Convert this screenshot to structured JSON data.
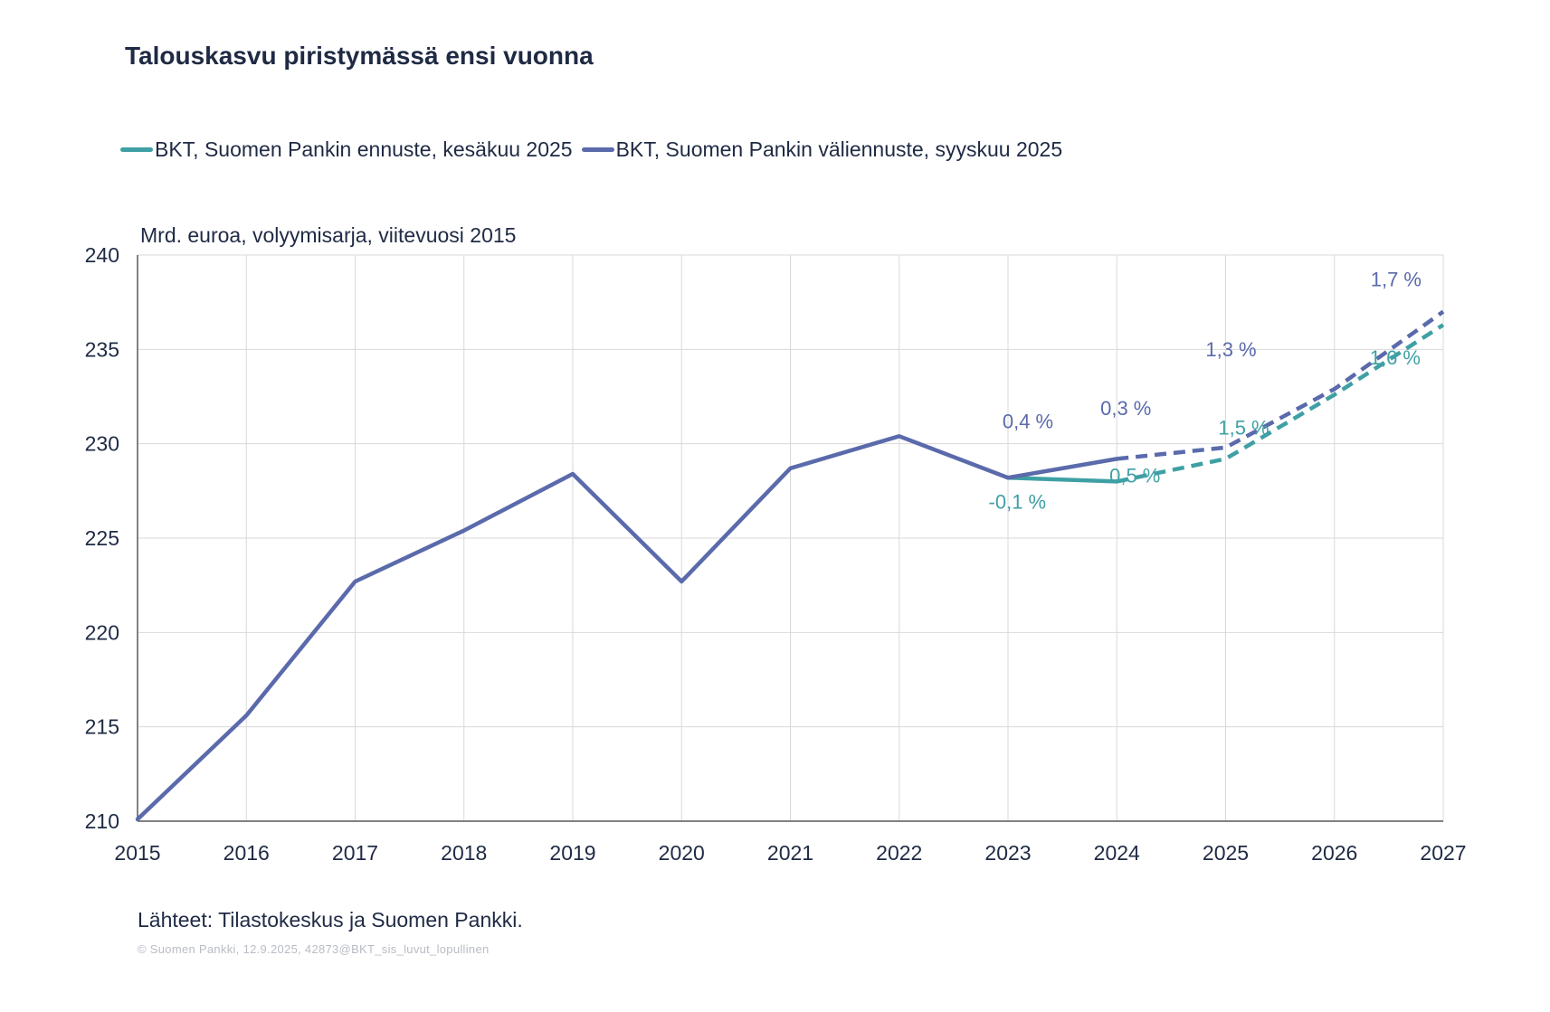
{
  "title": "Talouskasvu piristymässä ensi vuonna",
  "source": "Lähteet: Tilastokeskus ja Suomen Pankki.",
  "copyright": "© Suomen  Pankki, 12.9.2025, 42873@BKT_sis_luvut_lopullinen",
  "colors": {
    "june": "#3fa0a4",
    "sept": "#5a6aab",
    "grid": "#d9d9d9",
    "axis": "#595959",
    "text": "#1f2a44"
  },
  "chart_data": {
    "type": "line",
    "title": "Talouskasvu piristymässä ensi vuonna",
    "ylabel": "Mrd. euroa, volyymisarja, viitevuosi 2015",
    "xlabel": "",
    "ylim": [
      210,
      240
    ],
    "yticks": [
      "210",
      "215",
      "220",
      "225",
      "230",
      "235",
      "240"
    ],
    "categories": [
      "2015",
      "2016",
      "2017",
      "2018",
      "2019",
      "2020",
      "2021",
      "2022",
      "2023",
      "2024",
      "2025",
      "2026",
      "2027"
    ],
    "grid": true,
    "legend_position": "top-left",
    "series": [
      {
        "name": "BKT, Suomen Pankin ennuste, kesäkuu 2025",
        "color": "#3fa0a4",
        "values": [
          null,
          null,
          null,
          null,
          null,
          null,
          null,
          null,
          228.2,
          228.0,
          229.2,
          232.6,
          236.3
        ],
        "forecast_from": "2024",
        "labels": [
          {
            "year": "2024",
            "text": "-0,1 %"
          },
          {
            "year": "2025",
            "text": "0,5 %"
          },
          {
            "year": "2026",
            "text": "1,5 %"
          },
          {
            "year": "2027",
            "text": "1,6 %"
          }
        ]
      },
      {
        "name": "BKT, Suomen Pankin väliennuste, syyskuu 2025",
        "color": "#5a6aab",
        "values": [
          210.1,
          215.6,
          222.7,
          225.4,
          228.4,
          222.7,
          228.7,
          230.4,
          228.2,
          229.2,
          229.8,
          232.9,
          237.0
        ],
        "forecast_from": "2024",
        "labels": [
          {
            "year": "2024",
            "text": "0,4 %"
          },
          {
            "year": "2025",
            "text": "0,3 %"
          },
          {
            "year": "2026",
            "text": "1,3 %"
          },
          {
            "year": "2027",
            "text": "1,7 %"
          }
        ]
      }
    ]
  }
}
